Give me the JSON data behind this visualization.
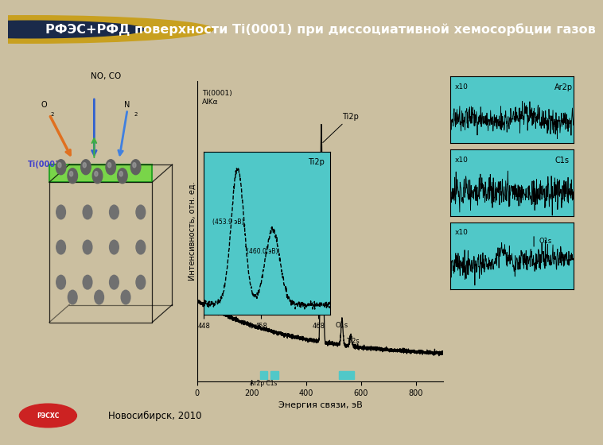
{
  "title": "РФЭС+РФД поверхности Ti(0001) при диссоциативной хемосорбции газов",
  "bg_color": "#cbbfa0",
  "header_bg": "#3a4a6a",
  "header_text_color": "#ffffff",
  "footer_text": "Новосибирск, 2010",
  "ylabel": "Интенсивность, отн. ед.",
  "xlabel": "Энергия связи, эВ",
  "inset_color": "#50c8c8",
  "teal_color": "#50c8c8",
  "panel_bg": "#50c8c8",
  "anno_ar2p": "Ar2p",
  "anno_c1s": "C1s",
  "anno_o1s": "O1s",
  "tick_labels_x": [
    "0",
    "200",
    "400",
    "600",
    "800"
  ],
  "tick_values_x": [
    0,
    200,
    400,
    600,
    800
  ],
  "canvas_color": "#cbbfa0"
}
